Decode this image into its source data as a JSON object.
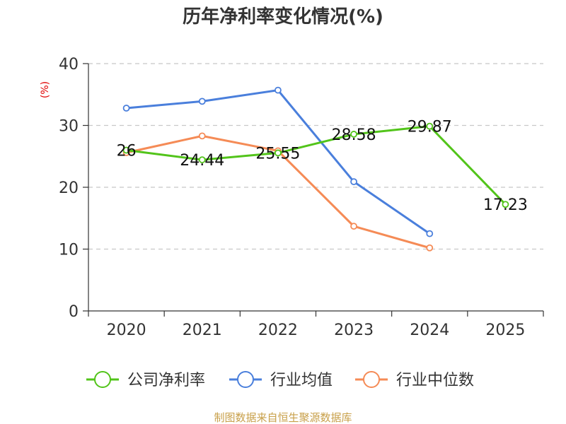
{
  "chart_data": {
    "type": "line",
    "title": "历年净利率变化情况(%)",
    "ylabel": "(%)",
    "xlabel": "",
    "categories": [
      "2020",
      "2021",
      "2022",
      "2023",
      "2024",
      "2025"
    ],
    "ylim": [
      0,
      40
    ],
    "yticks": [
      0,
      10,
      20,
      30,
      40
    ],
    "grid": true,
    "legend_position": "bottom",
    "series": [
      {
        "name": "公司净利率",
        "color": "#52c41a",
        "values": [
          26,
          24.44,
          25.55,
          28.58,
          29.87,
          17.23
        ],
        "labels": [
          "26",
          "24.44",
          "25.55",
          "28.58",
          "29.87",
          "17.23"
        ]
      },
      {
        "name": "行业均值",
        "color": "#4a7fdc",
        "values": [
          32.8,
          33.9,
          35.7,
          20.9,
          12.5,
          null
        ]
      },
      {
        "name": "行业中位数",
        "color": "#f58b56",
        "values": [
          25.6,
          28.3,
          25.9,
          13.7,
          10.2,
          null
        ]
      }
    ],
    "source": "制图数据来自恒生聚源数据库"
  }
}
